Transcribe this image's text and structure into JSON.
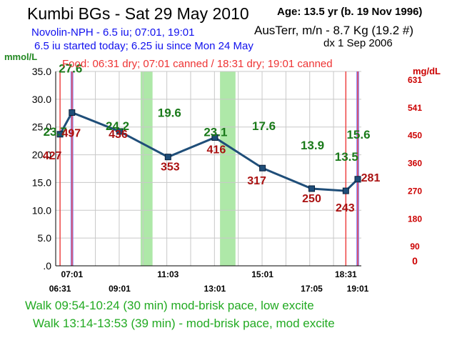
{
  "header": {
    "title": "Kumbi BGs - Sat 29 May 2010",
    "age": "Age: 13.5  yr (b. 19 Nov 1996)",
    "insulin_line1": "Novolin-NPH - 6.5 iu; 07:01, 19:01",
    "insulin_line2": "6.5 iu started today;  6.25 iu since Mon 24 May",
    "weight": "AusTerr, m/n - 8.7 Kg (19.2 #)",
    "diagnosis": "dx 1 Sep 2006",
    "food": "Food: 06:31 dry; 07:01 canned / 18:31 dry; 19:01 canned"
  },
  "footer": {
    "walk1": "Walk 09:54-10:24 (30 min) mod-brisk pace, low excite",
    "walk2": "Walk 13:14-13:53 (39 min) - mod-brisk pace, mod excite"
  },
  "colors": {
    "line": "#1f4e79",
    "mmol_label": "#1a7a1a",
    "mgdl_label": "#aa1111",
    "walk_band": "#aee8a8",
    "food_line": "#ee4444",
    "insulin_line": "#8080ff",
    "grid": "#c8c8c8"
  },
  "chart_data": {
    "type": "line",
    "ylabel": "mmol/L",
    "ylabel_right": "mg/dL",
    "ylim": [
      0,
      35
    ],
    "ytick_labels": [
      ".0",
      "5.0",
      "10.0",
      "15.0",
      "20.0",
      "25.0",
      "30.0",
      "35.0"
    ],
    "ytick_values": [
      0,
      5,
      10,
      15,
      20,
      25,
      30,
      35
    ],
    "right_tick_labels": [
      "0",
      "90",
      "180",
      "270",
      "360",
      "450",
      "541",
      "631"
    ],
    "x_tick_labels_top": [
      "07:01",
      "11:03",
      "15:01",
      "18:31"
    ],
    "x_tick_labels_bottom": [
      "06:31",
      "09:01",
      "13:01",
      "17:05",
      "19:01"
    ],
    "grid": true,
    "series": [
      {
        "values": [
          {
            "time": "06:31",
            "mmol": 23.7,
            "mmol_label": "23.7",
            "mgdl_label": "427"
          },
          {
            "time": "07:01",
            "mmol": 27.6,
            "mmol_label": "27.6",
            "mgdl_label": "497"
          },
          {
            "time": "09:01",
            "mmol": 24.2,
            "mmol_label": "24.2",
            "mgdl_label": "436"
          },
          {
            "time": "11:03",
            "mmol": 19.6,
            "mmol_label": "19.6",
            "mgdl_label": "353"
          },
          {
            "time": "13:01",
            "mmol": 23.1,
            "mmol_label": "23.1",
            "mgdl_label": "416"
          },
          {
            "time": "15:01",
            "mmol": 17.6,
            "mmol_label": "17.6",
            "mgdl_label": "317"
          },
          {
            "time": "17:05",
            "mmol": 13.9,
            "mmol_label": "13.9",
            "mgdl_label": "250"
          },
          {
            "time": "18:31",
            "mmol": 13.5,
            "mmol_label": "13.5",
            "mgdl_label": "243"
          },
          {
            "time": "19:01",
            "mmol": 15.6,
            "mmol_label": "15.6",
            "mgdl_label": "281"
          }
        ]
      }
    ],
    "walk_periods": [
      [
        "09:54",
        "10:24"
      ],
      [
        "13:14",
        "13:53"
      ]
    ],
    "food_times": [
      "06:31",
      "07:01",
      "18:31",
      "19:01"
    ],
    "insulin_times": [
      "07:01",
      "19:01"
    ],
    "hour_gridlines": [
      "07:00",
      "08:00",
      "09:00",
      "10:00",
      "11:00",
      "12:00",
      "13:00",
      "14:00",
      "15:00",
      "16:00",
      "17:00",
      "18:00",
      "19:00"
    ]
  }
}
